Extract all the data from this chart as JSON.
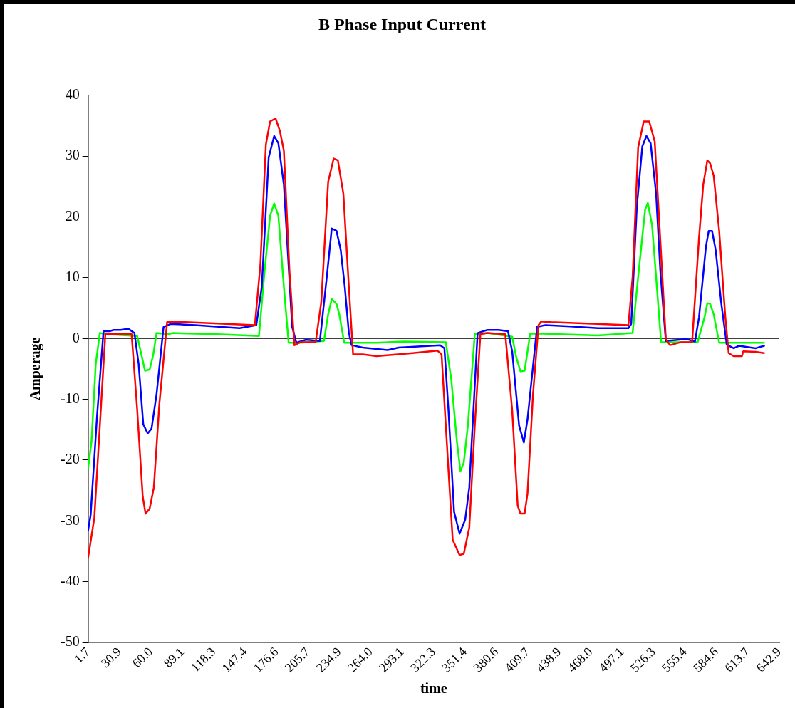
{
  "chart_data": {
    "type": "line",
    "title": "B Phase Input Current",
    "xlabel": "time",
    "ylabel": "Amperage",
    "xlim": [
      1.7,
      642.9
    ],
    "xticks": [
      1.7,
      30.9,
      {
        "value": 60.0,
        "label": "60.0"
      },
      89.1,
      118.3,
      147.4,
      176.6,
      205.7,
      234.9,
      {
        "value": 264.0,
        "label": "264.0"
      },
      293.1,
      322.3,
      351.4,
      380.6,
      409.7,
      438.9,
      {
        "value": 468.0,
        "label": "468.0"
      },
      497.1,
      526.3,
      555.4,
      584.6,
      613.7,
      642.9
    ],
    "ylim": [
      -50,
      40
    ],
    "yticks": [
      -50,
      -40,
      -30,
      -20,
      -10,
      0,
      10,
      20,
      30,
      40
    ],
    "grid": false,
    "legend": false,
    "marker": "none",
    "line_style": "solid",
    "ref_lines": [
      {
        "axis": "y",
        "value": 0,
        "color": "#404040"
      }
    ],
    "series": [
      {
        "color": "#ff0000",
        "x": [
          1.7,
          7.5,
          17.7,
          42.1,
          47.3,
          52.4,
          55,
          58.8,
          62.7,
          67.8,
          75,
          92.2,
          156.4,
          161.5,
          166.6,
          170.5,
          175.6,
          179.5,
          183.3,
          188.5,
          193.1,
          198.7,
          212.8,
          218,
          224.4,
          229.5,
          233.4,
          238.5,
          243.6,
          247.5,
          256.5,
          269.3,
          302.7,
          325.8,
          329.6,
          333.5,
          339.9,
          346.3,
          350.2,
          355.3,
          360.4,
          365.6,
          372,
          388.7,
          395.1,
          400.2,
          402.8,
          406.6,
          409.3,
          414.4,
          419.5,
          422.1,
          431.1,
          502.9,
          506.8,
          511.9,
          517.1,
          522.2,
          527.3,
          532.5,
          537.6,
          541.5,
          551.7,
          562,
          568.4,
          572.3,
          576.1,
          578.7,
          582,
          587.1,
          592.8,
          595.9,
          600.5,
          608.2,
          609.5,
          621,
          628.7
        ],
        "values": [
          -36.1,
          -29.5,
          0.7,
          0.7,
          -11.8,
          -26,
          -28.8,
          -28,
          -24.5,
          -10.8,
          2.7,
          2.7,
          2.2,
          12.1,
          31.9,
          35.7,
          36.2,
          34.2,
          30.9,
          11.1,
          -1.1,
          -0.6,
          -0.6,
          6.0,
          25.8,
          29.6,
          29.3,
          23.8,
          8.5,
          -2.6,
          -2.6,
          -2.9,
          -2.4,
          -2.0,
          -2.6,
          -14.3,
          -33.1,
          -35.6,
          -35.4,
          -31.1,
          -14.3,
          0.7,
          0.9,
          0.7,
          -11.8,
          -27.5,
          -28.8,
          -28.8,
          -25.5,
          -9.2,
          2.2,
          2.8,
          2.7,
          2.2,
          10.1,
          31.4,
          35.7,
          35.7,
          32.4,
          16.1,
          -0.1,
          -1.1,
          -0.6,
          -0.6,
          16.6,
          25.3,
          29.3,
          28.8,
          26.8,
          17.7,
          3.5,
          -2.4,
          -2.9,
          -2.9,
          -2.1,
          -2.2,
          -2.4
        ]
      },
      {
        "color": "#0000ff",
        "x": [
          1.7,
          4.1,
          10,
          16,
          21.6,
          25.4,
          31.9,
          39,
          44.7,
          48.6,
          52.9,
          57,
          60.6,
          65.2,
          71.7,
          78.1,
          101.2,
          142.2,
          157.7,
          162.8,
          169.2,
          174.3,
          178.2,
          183.3,
          191,
          194.9,
          203.8,
          216.7,
          223.1,
          227.7,
          232.1,
          236,
          239.8,
          243.6,
          246.2,
          256.5,
          279.6,
          289.8,
          328.4,
          332.2,
          336,
          341.2,
          346.3,
          351.5,
          355.3,
          363,
          372,
          382.3,
          391.2,
          395.1,
          401.5,
          405.9,
          409.3,
          418.2,
          425.9,
          449,
          474.7,
          502.9,
          505.5,
          510.7,
          515.8,
          519.6,
          523.5,
          528.6,
          532.5,
          537.6,
          556.9,
          564.6,
          568.4,
          574.8,
          577.4,
          580.5,
          583.8,
          588.9,
          594.1,
          600.5,
          605.6,
          621,
          628.7
        ],
        "values": [
          -31.6,
          -29,
          -12.8,
          1.2,
          1.2,
          1.4,
          1.4,
          1.6,
          0.9,
          -4.2,
          -14.1,
          -15.6,
          -14.8,
          -9.2,
          1.9,
          2.4,
          2.2,
          1.7,
          2.2,
          8.5,
          29.8,
          33.3,
          32.1,
          25.3,
          1.9,
          -0.7,
          -0.2,
          -0.4,
          10.1,
          18.1,
          17.7,
          14.6,
          8.5,
          0.9,
          -1.1,
          -1.5,
          -1.9,
          -1.5,
          -1.1,
          -1.6,
          -11.8,
          -28.5,
          -32.1,
          -29.8,
          -24.5,
          0.9,
          1.4,
          1.4,
          1.2,
          -2.1,
          -14.3,
          -17.1,
          -13.3,
          1.9,
          2.2,
          2.0,
          1.7,
          1.7,
          2.4,
          21.7,
          31.6,
          33.3,
          32.1,
          23.8,
          11.1,
          -0.4,
          -0.1,
          -0.5,
          3.5,
          15.1,
          17.7,
          17.7,
          14.6,
          6.0,
          -1.0,
          -1.6,
          -1.2,
          -1.6,
          -1.2
        ]
      },
      {
        "color": "#00ff00",
        "x": [
          1.7,
          4.9,
          8.8,
          12.6,
          19,
          47.3,
          51.1,
          54.5,
          58.8,
          62.2,
          65.2,
          75.5,
          80.6,
          121.7,
          160.2,
          165.4,
          170.5,
          174.3,
          178.2,
          183.3,
          187.7,
          198.7,
          220.5,
          224.4,
          227.7,
          232.1,
          234.7,
          239.3,
          269.3,
          295,
          333.5,
          338.6,
          343.8,
          347.1,
          350.2,
          354,
          360.4,
          372,
          395.1,
          398.9,
          402.8,
          406.6,
          411.8,
          423.4,
          474.7,
          506.8,
          511.9,
          518.4,
          520.9,
          524.8,
          528.6,
          533.2,
          567.1,
          573.5,
          576.1,
          578.7,
          582,
          587.1,
          603.1,
          628.7
        ],
        "values": [
          -21.4,
          -16.9,
          -4.2,
          0.9,
          0.7,
          0.4,
          -2.6,
          -5.3,
          -5.1,
          -2.6,
          0.9,
          0.7,
          0.9,
          0.7,
          0.4,
          11.1,
          20.2,
          22.2,
          20.2,
          8.5,
          -0.7,
          -0.7,
          -0.4,
          4.0,
          6.5,
          5.7,
          4.0,
          -0.7,
          -0.7,
          -0.5,
          -0.6,
          -6.7,
          -16.9,
          -21.8,
          -20.4,
          -14.3,
          0.7,
          0.9,
          0.3,
          -3.1,
          -5.4,
          -5.3,
          0.8,
          0.8,
          0.5,
          0.9,
          10.1,
          21.2,
          22.3,
          18.7,
          10.1,
          -0.6,
          -0.6,
          3.5,
          5.8,
          5.7,
          4.0,
          -0.7,
          -0.7,
          -0.7
        ]
      }
    ]
  }
}
